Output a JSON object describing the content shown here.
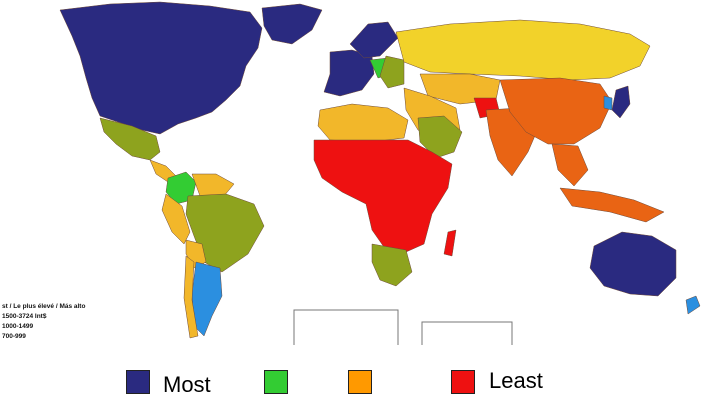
{
  "colors": {
    "most": "#2a2a80",
    "green": "#33cc33",
    "orange": "#ff9900",
    "least": "#ee1111",
    "olive": "#8ea31e",
    "yellow": "#f2d22a",
    "gold": "#f2b72a",
    "deep_orange": "#e96414",
    "light_blue": "#2b8fe0",
    "ocean": "#ffffff"
  },
  "map_legend": {
    "heading": "st / Le plus élevé / Más alto",
    "rows": [
      "1500-3724 Int$",
      "1000-1499",
      "700-999"
    ]
  },
  "key": {
    "most_label": "Most",
    "least_label": "Least"
  }
}
